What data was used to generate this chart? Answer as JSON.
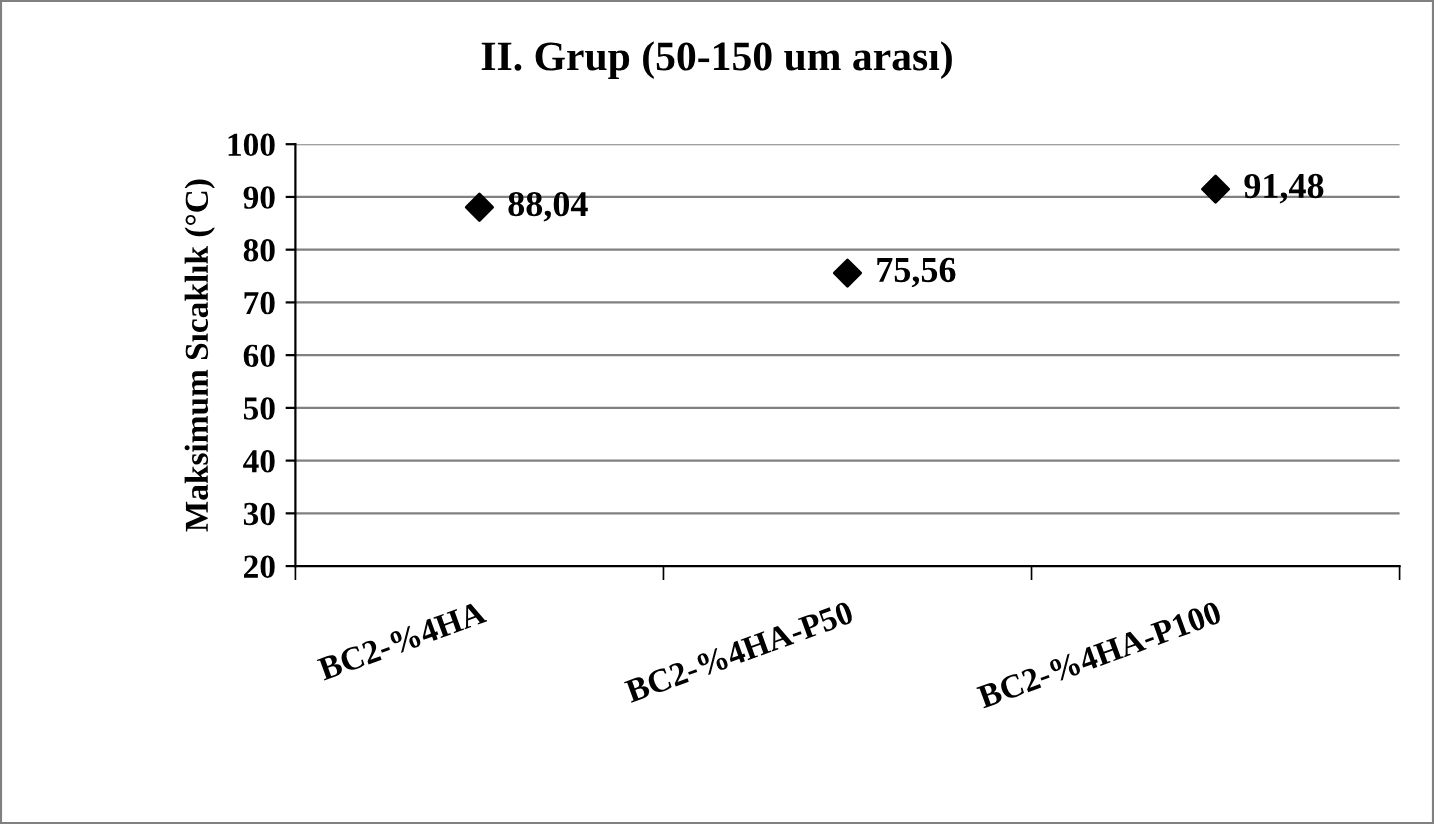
{
  "chart_data": {
    "type": "scatter",
    "title": "II. Grup (50-150 um arası)",
    "ylabel": "Maksimum Sıcaklık (°C)",
    "categories": [
      "BC2-%4HA",
      "BC2-%4HA-P50",
      "BC2-%4HA-P100"
    ],
    "values": [
      88.04,
      75.56,
      91.48
    ],
    "value_labels": [
      "88,04",
      "75,56",
      "91,48"
    ],
    "color": "#000000",
    "marker": "diamond",
    "ylim": [
      20,
      100
    ],
    "yticks": [
      20,
      30,
      40,
      50,
      60,
      70,
      80,
      90,
      100
    ],
    "grid": "y",
    "legend": false
  }
}
